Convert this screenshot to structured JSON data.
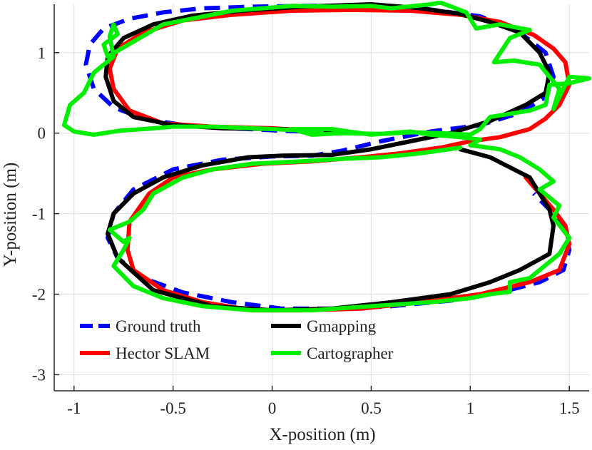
{
  "chart_data": {
    "type": "line",
    "xlabel": "X-position (m)",
    "ylabel": "Y-position (m)",
    "xlim": [
      -1.1,
      1.6
    ],
    "ylim": [
      -3.2,
      1.6
    ],
    "xticks": [
      -1,
      -0.5,
      0,
      0.5,
      1,
      1.5
    ],
    "xtick_labels": [
      "-1",
      "-0.5",
      "0",
      "0.5",
      "1",
      "1.5"
    ],
    "yticks": [
      -3,
      -2,
      -1,
      0,
      1
    ],
    "ytick_labels": [
      "-3",
      "-2",
      "-1",
      "0",
      "1"
    ],
    "grid": true,
    "legend_position": "bottom-left",
    "series": [
      {
        "name": "Ground truth",
        "color": "#0000ff",
        "style": "dashed",
        "x": [
          0.27,
          0.05,
          -0.2,
          -0.45,
          -0.65,
          -0.8,
          -0.9,
          -0.94,
          -0.92,
          -0.85,
          -0.72,
          -0.55,
          -0.35,
          -0.1,
          0.15,
          0.45,
          0.75,
          1.05,
          1.25,
          1.38,
          1.42,
          1.38,
          1.25,
          1.05,
          0.8,
          0.55,
          0.35,
          0.2,
          0.0,
          -0.25,
          -0.5,
          -0.7,
          -0.8,
          -0.83,
          -0.78,
          -0.65,
          -0.45,
          -0.2,
          0.05,
          0.3,
          0.6,
          0.9,
          1.15,
          1.35,
          1.47,
          1.5,
          1.48,
          1.42,
          1.32
        ],
        "y": [
          0.01,
          0.03,
          0.06,
          0.1,
          0.18,
          0.32,
          0.55,
          0.85,
          1.1,
          1.3,
          1.42,
          1.5,
          1.55,
          1.57,
          1.58,
          1.58,
          1.55,
          1.45,
          1.25,
          1.0,
          0.7,
          0.45,
          0.25,
          0.1,
          0.02,
          -0.1,
          -0.22,
          -0.28,
          -0.29,
          -0.33,
          -0.45,
          -0.7,
          -1.0,
          -1.3,
          -1.55,
          -1.8,
          -1.98,
          -2.1,
          -2.18,
          -2.18,
          -2.15,
          -2.08,
          -1.98,
          -1.85,
          -1.7,
          -1.45,
          -1.2,
          -1.0,
          -0.75
        ]
      },
      {
        "name": "Hector SLAM",
        "color": "#ff0000",
        "style": "solid",
        "x": [
          0.25,
          0.0,
          -0.3,
          -0.55,
          -0.72,
          -0.8,
          -0.82,
          -0.78,
          -0.65,
          -0.45,
          -0.2,
          0.1,
          0.4,
          0.7,
          0.95,
          1.15,
          1.32,
          1.42,
          1.48,
          1.5,
          1.45,
          1.38,
          1.3,
          1.15,
          1.0,
          0.85,
          0.65,
          0.45,
          0.2,
          -0.05,
          -0.3,
          -0.5,
          -0.62,
          -0.72,
          -0.73,
          -0.7,
          -0.55,
          -0.35,
          -0.1,
          0.15,
          0.45,
          0.75,
          1.05,
          1.3,
          1.45,
          1.5,
          1.48,
          1.42,
          1.35,
          1.28
        ],
        "y": [
          0.02,
          0.06,
          0.08,
          0.12,
          0.28,
          0.55,
          0.8,
          1.05,
          1.25,
          1.4,
          1.47,
          1.52,
          1.53,
          1.52,
          1.47,
          1.38,
          1.22,
          1.05,
          0.88,
          0.6,
          0.35,
          0.18,
          0.05,
          -0.05,
          -0.1,
          -0.18,
          -0.25,
          -0.3,
          -0.35,
          -0.38,
          -0.45,
          -0.55,
          -0.75,
          -1.1,
          -1.45,
          -1.7,
          -1.95,
          -2.1,
          -2.2,
          -2.2,
          -2.18,
          -2.1,
          -2.0,
          -1.85,
          -1.7,
          -1.38,
          -1.15,
          -0.95,
          -0.75,
          -0.55
        ]
      },
      {
        "name": "Gmapping",
        "color": "#000000",
        "style": "solid",
        "x": [
          0.3,
          0.05,
          -0.25,
          -0.5,
          -0.7,
          -0.8,
          -0.84,
          -0.83,
          -0.75,
          -0.6,
          -0.4,
          -0.15,
          0.15,
          0.5,
          0.75,
          0.95,
          1.1,
          1.25,
          1.35,
          1.4,
          1.38,
          1.28,
          1.1,
          0.9,
          0.7,
          0.5,
          0.3,
          0.05,
          -0.12,
          -0.35,
          -0.55,
          -0.7,
          -0.8,
          -0.83,
          -0.78,
          -0.6,
          -0.3,
          0.0,
          0.3,
          0.6,
          0.9,
          1.1,
          1.25,
          1.4,
          1.42,
          1.4,
          1.3,
          1.1,
          0.95
        ],
        "y": [
          0.02,
          0.05,
          0.06,
          0.1,
          0.2,
          0.4,
          0.7,
          0.95,
          1.18,
          1.35,
          1.46,
          1.52,
          1.57,
          1.6,
          1.55,
          1.48,
          1.38,
          1.25,
          1.0,
          0.75,
          0.5,
          0.35,
          0.15,
          0.0,
          -0.1,
          -0.2,
          -0.27,
          -0.28,
          -0.3,
          -0.4,
          -0.55,
          -0.75,
          -1.0,
          -1.25,
          -1.55,
          -1.95,
          -2.15,
          -2.2,
          -2.18,
          -2.1,
          -2.0,
          -1.85,
          -1.7,
          -1.5,
          -1.15,
          -0.95,
          -0.55,
          -0.3,
          -0.2
        ]
      },
      {
        "name": "Cartographer",
        "color": "#00ee00",
        "style": "solid",
        "x": [
          0.25,
          0.1,
          -0.1,
          -0.3,
          -0.5,
          -0.65,
          -0.77,
          -0.9,
          -1.0,
          -1.05,
          -1.02,
          -0.95,
          -0.9,
          -0.85,
          -0.8,
          -0.82,
          -0.8,
          -0.78,
          -0.85,
          -0.83,
          -0.55,
          -0.2,
          0.1,
          0.3,
          0.5,
          0.6,
          0.8,
          0.85,
          0.98,
          1.03,
          1.15,
          1.3,
          1.2,
          1.12,
          1.22,
          1.35,
          1.45,
          1.42,
          1.5,
          1.6,
          1.5,
          1.4,
          1.38,
          1.3,
          1.1,
          1.05,
          1.0,
          0.85,
          0.7,
          0.55,
          0.35,
          0.2,
          0.1,
          0.3,
          0.5,
          0.7,
          0.8,
          0.95,
          1.05,
          1.0,
          1.15,
          1.25,
          1.35,
          1.42,
          1.35,
          1.45,
          1.42,
          1.5,
          1.45,
          1.4,
          1.35,
          1.3,
          1.2,
          1.2,
          1.1,
          1.0,
          0.8,
          0.5,
          0.2,
          -0.1,
          -0.35,
          -0.55,
          -0.7,
          -0.8,
          -0.75,
          -0.72,
          -0.75,
          -0.82,
          -0.72,
          -0.65,
          -0.6,
          -0.45,
          -0.3,
          -0.1,
          0.15,
          0.35,
          0.55,
          0.75,
          0.95
        ],
        "y": [
          0.02,
          0.04,
          0.06,
          0.08,
          0.08,
          0.05,
          0.03,
          -0.02,
          0.02,
          0.1,
          0.35,
          0.5,
          0.75,
          0.85,
          0.95,
          1.2,
          1.35,
          1.23,
          1.1,
          0.95,
          1.35,
          1.52,
          1.58,
          1.57,
          1.58,
          1.55,
          1.6,
          1.62,
          1.5,
          1.3,
          1.35,
          1.28,
          1.18,
          0.88,
          0.9,
          0.85,
          0.55,
          0.3,
          0.7,
          0.68,
          0.62,
          0.6,
          0.35,
          0.28,
          0.2,
          0.05,
          -0.02,
          0.0,
          0.01,
          -0.01,
          0.0,
          -0.02,
          0.05,
          0.05,
          -0.02,
          0.02,
          -0.02,
          -0.05,
          -0.08,
          -0.15,
          -0.2,
          -0.3,
          -0.45,
          -0.6,
          -0.7,
          -0.9,
          -1.05,
          -1.3,
          -1.5,
          -1.6,
          -1.7,
          -1.8,
          -1.85,
          -1.97,
          -2.0,
          -2.05,
          -2.1,
          -2.15,
          -2.2,
          -2.2,
          -2.15,
          -2.05,
          -1.9,
          -1.65,
          -1.45,
          -1.3,
          -1.35,
          -1.2,
          -1.1,
          -0.95,
          -0.75,
          -0.55,
          -0.45,
          -0.38,
          -0.35,
          -0.32,
          -0.3,
          -0.25,
          -0.18
        ]
      }
    ]
  }
}
